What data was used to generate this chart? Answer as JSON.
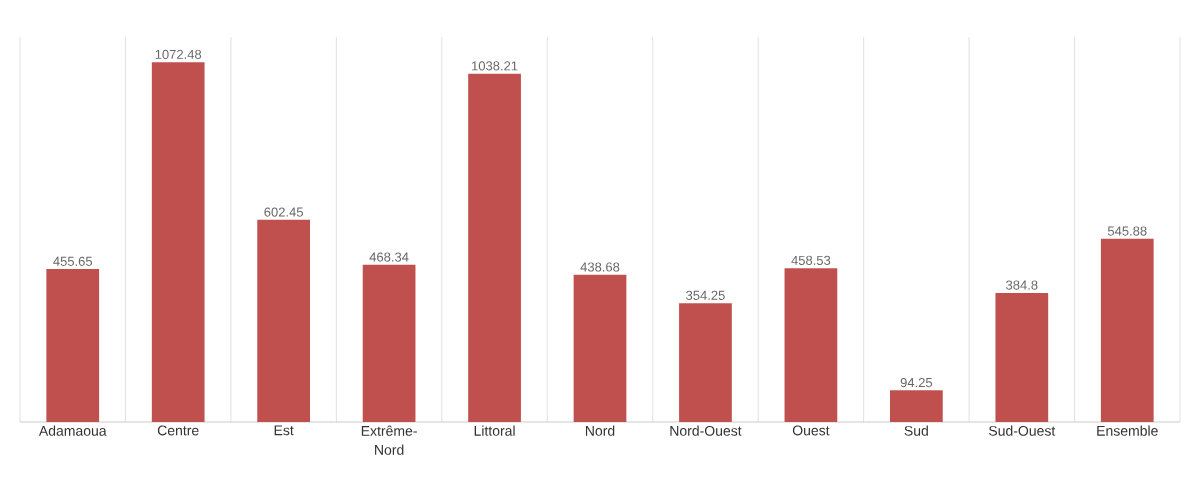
{
  "chart_data": {
    "type": "bar",
    "categories": [
      "Adamaoua",
      "Centre",
      "Est",
      "Extrême-Nord",
      "Littoral",
      "Nord",
      "Nord-Ouest",
      "Ouest",
      "Sud",
      "Sud-Ouest",
      "Ensemble"
    ],
    "values": [
      455.65,
      1072.48,
      602.45,
      468.34,
      1038.21,
      438.68,
      354.25,
      458.53,
      94.25,
      384.8,
      545.88
    ],
    "color": "#c0504d",
    "data_labels": true,
    "grid": "x"
  }
}
